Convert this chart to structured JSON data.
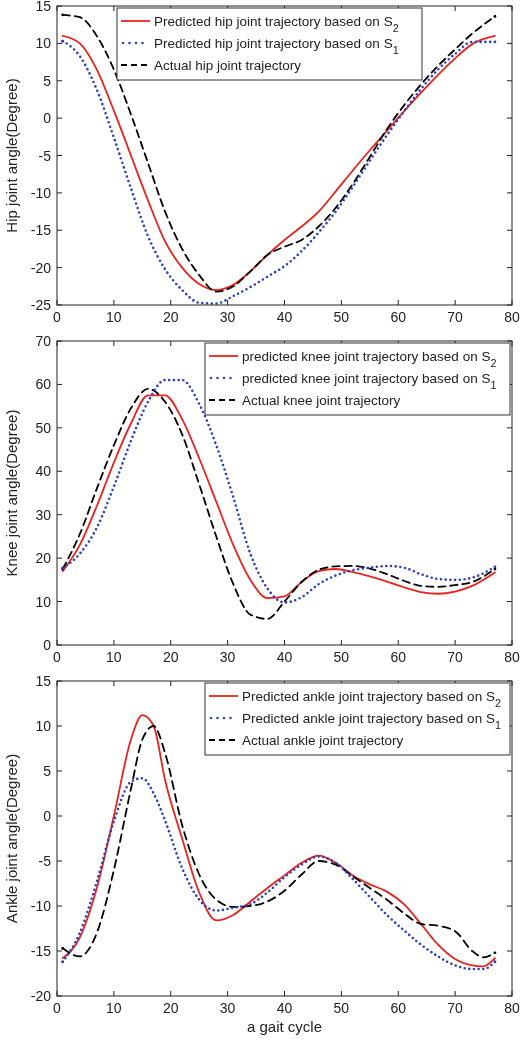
{
  "chart_data": [
    {
      "type": "line",
      "ylabel": "Hip joint angle(Degree)",
      "xlim": [
        0,
        80
      ],
      "xticks": [
        0,
        10,
        20,
        30,
        40,
        50,
        60,
        70,
        80
      ],
      "ylim": [
        -25,
        15
      ],
      "yticks": [
        -25,
        -20,
        -15,
        -10,
        -5,
        0,
        5,
        10,
        15
      ],
      "grid": false,
      "legend": "top",
      "x": [
        1,
        4,
        7,
        10,
        13,
        16,
        19,
        22,
        25,
        28,
        31,
        34,
        37,
        40,
        43,
        46,
        49,
        52,
        55,
        58,
        61,
        64,
        67,
        70,
        73,
        77
      ],
      "series": [
        {
          "name": "Predicted hip joint trajectory based on S$_{2}$",
          "color": "#e8231e",
          "line_style": "solid",
          "values": [
            11,
            10,
            6.5,
            1,
            -5,
            -11,
            -16.5,
            -20,
            -22.2,
            -23,
            -22.3,
            -20.5,
            -18.3,
            -16.3,
            -14.5,
            -12.5,
            -9.8,
            -7,
            -4.3,
            -1.7,
            0.9,
            3.4,
            5.8,
            8,
            9.9,
            11
          ]
        },
        {
          "name": "Predicted hip joint trajectory based on S$_{1}$",
          "color": "#2b3fbf",
          "line_style": "dotted",
          "values": [
            10.3,
            8.3,
            3.8,
            -2.6,
            -9.4,
            -15.8,
            -20.2,
            -23,
            -24.7,
            -24.8,
            -23.8,
            -22.6,
            -21.2,
            -19.8,
            -17.8,
            -15.3,
            -12.5,
            -9.2,
            -5.7,
            -2.3,
            0.9,
            3.9,
            6.5,
            8.6,
            10.2,
            10.2
          ]
        },
        {
          "name": "Actual hip joint trajectory",
          "color": "#000000",
          "line_style": "dashed",
          "values": [
            13.8,
            13.5,
            11,
            6.5,
            0.5,
            -6,
            -12.5,
            -17.5,
            -21,
            -23.2,
            -22.5,
            -20.5,
            -18.3,
            -17.2,
            -16.3,
            -14.5,
            -12,
            -8.8,
            -5.2,
            -1.5,
            1.7,
            4.5,
            7,
            9.2,
            11.3,
            13.6
          ]
        }
      ]
    },
    {
      "type": "line",
      "ylabel": "Knee joint angle(Degree)",
      "xlim": [
        0,
        80
      ],
      "xticks": [
        0,
        10,
        20,
        30,
        40,
        50,
        60,
        70,
        80
      ],
      "ylim": [
        0,
        70
      ],
      "yticks": [
        0,
        10,
        20,
        30,
        40,
        50,
        60,
        70
      ],
      "grid": false,
      "legend": "top right",
      "x": [
        1,
        4,
        7,
        10,
        13,
        16,
        19,
        22,
        25,
        28,
        31,
        34,
        37,
        40,
        43,
        46,
        49,
        52,
        55,
        58,
        61,
        64,
        67,
        70,
        73,
        77
      ],
      "series": [
        {
          "name": "predicted knee joint trajectory based on S$_{2}$",
          "color": "#e8231e",
          "line_style": "solid",
          "values": [
            17,
            23,
            32,
            42,
            51,
            57.5,
            57.5,
            52,
            43,
            33,
            23,
            15,
            10.8,
            11.2,
            14.5,
            17,
            17.5,
            16.8,
            15.8,
            14.6,
            13.3,
            12.2,
            11.8,
            12.3,
            13.6,
            16.7
          ]
        },
        {
          "name": "predicted knee joint trajectory based on S$_{1}$",
          "color": "#2b3fbf",
          "line_style": "dotted",
          "values": [
            17.7,
            21,
            27,
            36.5,
            47,
            56,
            61,
            61,
            55.5,
            46,
            34,
            21,
            13,
            9.8,
            11,
            14,
            16,
            17.2,
            17.8,
            18.2,
            17.8,
            16.3,
            15.2,
            15,
            15.5,
            18
          ]
        },
        {
          "name": "Actual knee joint trajectory",
          "color": "#000000",
          "line_style": "dashed",
          "values": [
            17.5,
            25.5,
            36,
            46,
            54.5,
            59,
            56,
            48.5,
            37,
            25,
            14,
            7,
            6,
            10,
            14.5,
            17.3,
            18.1,
            18.2,
            17.6,
            16.3,
            14.8,
            13.6,
            13.4,
            13.8,
            14.5,
            17.5
          ]
        }
      ]
    },
    {
      "type": "line",
      "xlabel": "a gait cycle",
      "ylabel": "Ankle joint angle(Degree)",
      "xlim": [
        0,
        80
      ],
      "xticks": [
        0,
        10,
        20,
        30,
        40,
        50,
        60,
        70,
        80
      ],
      "ylim": [
        -20,
        15
      ],
      "yticks": [
        -20,
        -15,
        -10,
        -5,
        0,
        5,
        10,
        15
      ],
      "grid": false,
      "legend": "top right",
      "x": [
        1,
        4,
        7,
        10,
        13,
        15,
        17,
        19,
        22,
        25,
        28,
        31,
        34,
        37,
        40,
        43,
        46,
        49,
        52,
        55,
        58,
        61,
        64,
        67,
        70,
        73,
        75,
        77
      ],
      "series": [
        {
          "name": "Predicted ankle joint trajectory based on S$_{2}$",
          "color": "#e8231e",
          "line_style": "solid",
          "values": [
            -15.8,
            -13.5,
            -8,
            0,
            8.5,
            11.2,
            10,
            4,
            -2.5,
            -8.5,
            -11.6,
            -11,
            -9.5,
            -8,
            -6.6,
            -5.2,
            -4.4,
            -5.2,
            -6.6,
            -7.6,
            -8.4,
            -9.8,
            -12,
            -14.3,
            -15.9,
            -16.6,
            -16.7,
            -15.8
          ]
        },
        {
          "name": "Predicted ankle joint trajectory based on S$_{1}$",
          "color": "#2b3fbf",
          "line_style": "dotted",
          "values": [
            -16.2,
            -13,
            -7.3,
            -0.6,
            3.8,
            4.2,
            2.5,
            -0.5,
            -5.8,
            -9.3,
            -10.5,
            -10.2,
            -9.8,
            -8.5,
            -6.8,
            -5.4,
            -4.5,
            -5.2,
            -7,
            -9,
            -11,
            -12.7,
            -14.3,
            -15.6,
            -16.6,
            -17,
            -17,
            -16.2
          ]
        },
        {
          "name": "Actual ankle joint trajectory",
          "color": "#000000",
          "line_style": "dashed",
          "values": [
            -14.7,
            -15.6,
            -13,
            -6,
            3,
            8.5,
            10,
            7,
            -1,
            -6.5,
            -9.3,
            -10.1,
            -10,
            -9.5,
            -8.3,
            -6.5,
            -5,
            -5.4,
            -6.7,
            -8,
            -9.3,
            -10.8,
            -12,
            -12.2,
            -12.8,
            -15,
            -15.7,
            -15.2
          ]
        }
      ]
    }
  ]
}
